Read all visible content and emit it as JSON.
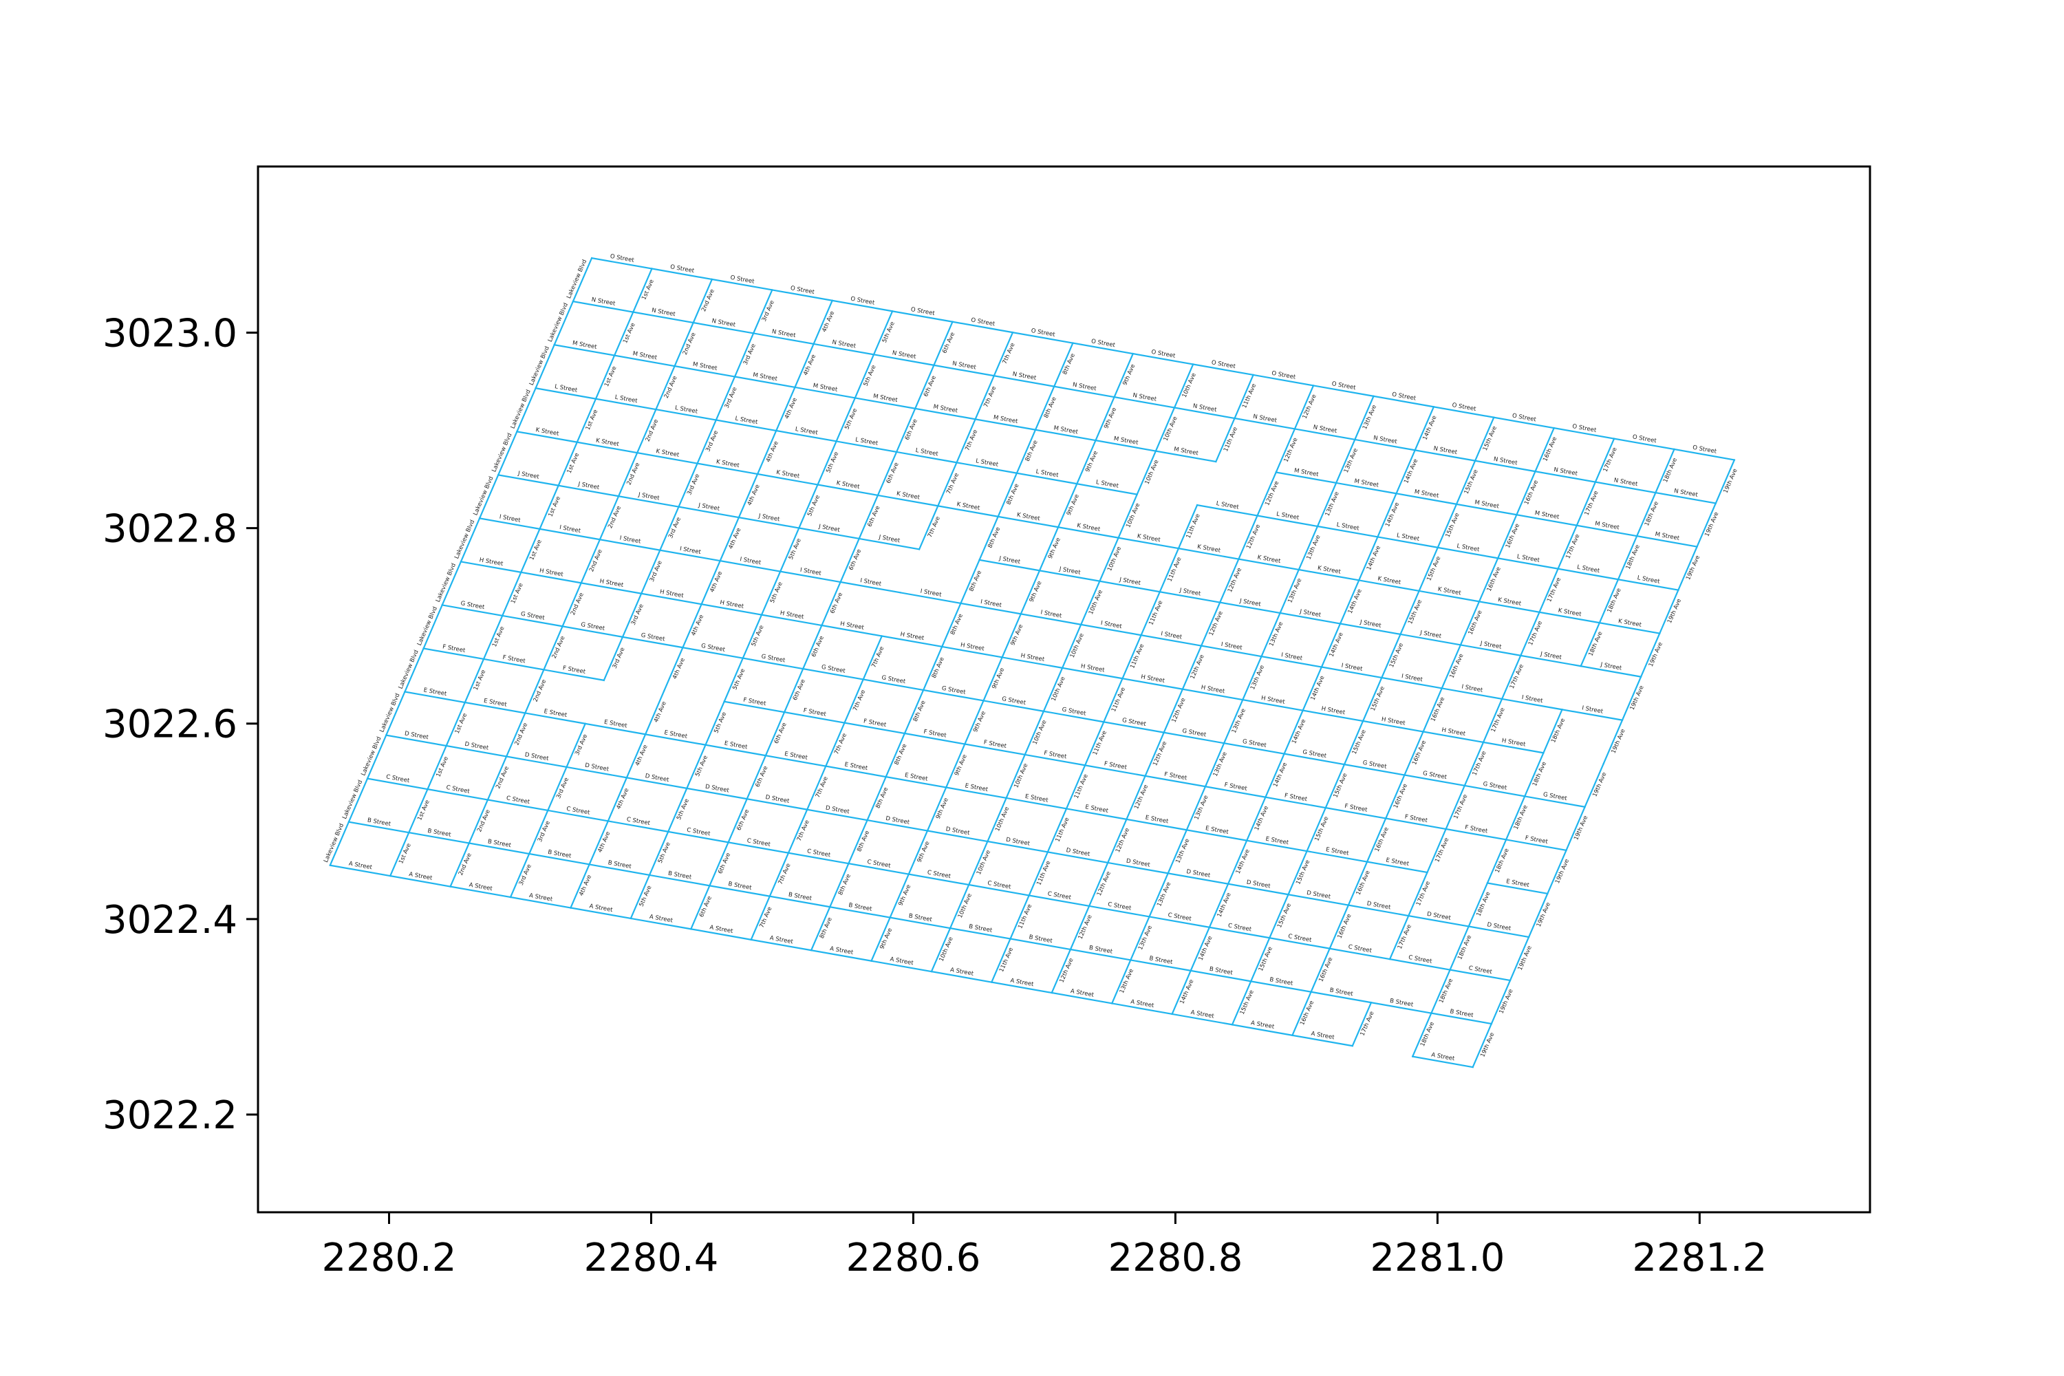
{
  "chart_data": {
    "type": "map",
    "title": "",
    "xlabel": "",
    "ylabel": "",
    "xlim": [
      2280.1,
      2281.33
    ],
    "ylim": [
      3022.1,
      3023.17
    ],
    "x_ticks": [
      2280.2,
      2280.4,
      2280.6,
      2280.8,
      2281.0,
      2281.2
    ],
    "y_ticks": [
      3022.2,
      3022.4,
      3022.6,
      3022.8,
      3023.0
    ],
    "x_tick_labels": [
      "2280.2",
      "2280.4",
      "2280.6",
      "2280.8",
      "2281.0",
      "2281.2"
    ],
    "y_tick_labels": [
      "3022.2",
      "3022.4",
      "3022.6",
      "3022.8",
      "3023.0"
    ],
    "grid": false,
    "legend": "none",
    "line_color": "#1fb4ee",
    "grid_origin": [
      2280.155,
      3022.455
    ],
    "column_vector": [
      0.04589,
      -0.01087
    ],
    "row_vector": [
      0.01426,
      0.04438
    ],
    "streets": [
      "A Street",
      "B Street",
      "C Street",
      "D Street",
      "E Street",
      "F Street",
      "G Street",
      "H Street",
      "I Street",
      "J Street",
      "K Street",
      "L Street",
      "M Street",
      "N Street",
      "O Street"
    ],
    "avenues": [
      "1st Ave",
      "2nd Ave",
      "3rd Ave",
      "4th Ave",
      "5th Ave",
      "6th Ave",
      "7th Ave",
      "8th Ave",
      "9th Ave",
      "10th Ave",
      "11th Ave",
      "12th Ave",
      "13th Ave",
      "14th Ave",
      "15th Ave",
      "16th Ave",
      "17th Ave",
      "18th Ave",
      "19th Ave"
    ],
    "boulevard": "Lakeview Blvd",
    "missing_street_segments": [
      {
        "street_row": 5,
        "between_avenues": [
          3,
          4
        ]
      },
      {
        "street_row": 5,
        "between_avenues": [
          4,
          5
        ]
      },
      {
        "street_row": 9,
        "between_avenues": [
          7,
          8
        ]
      },
      {
        "street_row": 11,
        "between_avenues": [
          10,
          11
        ]
      },
      {
        "street_row": 12,
        "between_avenues": [
          11,
          12
        ]
      },
      {
        "street_row": 4,
        "between_avenues": [
          17,
          18
        ]
      },
      {
        "street_row": 7,
        "between_avenues": [
          18,
          19
        ]
      },
      {
        "street_row": 0,
        "between_avenues": [
          17,
          18
        ]
      }
    ],
    "missing_avenue_segments": [
      {
        "avenue": 3,
        "between_rows": [
          4,
          5
        ]
      },
      {
        "avenue": 7,
        "between_rows": [
          7,
          8
        ]
      },
      {
        "avenue": 7,
        "between_rows": [
          8,
          9
        ]
      },
      {
        "avenue": 11,
        "between_rows": [
          11,
          12
        ]
      },
      {
        "avenue": 17,
        "between_rows": [
          1,
          2
        ]
      },
      {
        "avenue": 18,
        "between_rows": [
          8,
          9
        ]
      }
    ]
  }
}
